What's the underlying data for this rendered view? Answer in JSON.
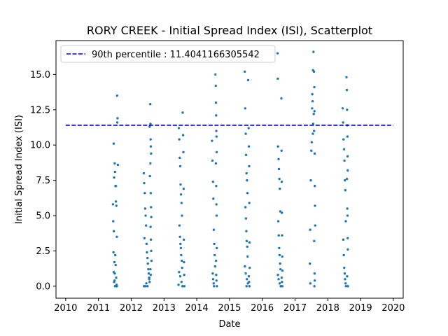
{
  "chart_data": {
    "type": "scatter",
    "title": "RORY CREEK - Initial Spread Index (ISI), Scatterplot",
    "xlabel": "Date",
    "ylabel": "Initial Spread Index (ISI)",
    "xlim": [
      "2009-09-15",
      "2020-04-20"
    ],
    "ylim": [
      -0.85,
      17.4
    ],
    "xticks": [
      "2010",
      "2011",
      "2012",
      "2013",
      "2014",
      "2015",
      "2016",
      "2017",
      "2018",
      "2019",
      "2020"
    ],
    "yticks": [
      "0.0",
      "2.5",
      "5.0",
      "7.5",
      "10.0",
      "12.5",
      "15.0"
    ],
    "grid": false,
    "legend_position": "top-left",
    "point_color": "#1f77b4",
    "percentile_line": {
      "label": "90th percentile : 11.4041166305542",
      "value": 11.4041166305542,
      "color": "#0000cc",
      "style": "dashed",
      "x_range": [
        "2010-01-01",
        "2020-01-01"
      ]
    },
    "series": [
      {
        "points": [
          [
            "2011-06-20",
            10.1
          ],
          [
            "2011-06-25",
            7.7
          ],
          [
            "2011-07-01",
            8.7
          ],
          [
            "2011-07-05",
            8.1
          ],
          [
            "2011-07-10",
            7.1
          ],
          [
            "2011-07-15",
            6.0
          ],
          [
            "2011-07-20",
            5.7
          ],
          [
            "2011-06-15",
            4.6
          ],
          [
            "2011-06-22",
            3.9
          ],
          [
            "2011-07-25",
            3.5
          ],
          [
            "2011-06-18",
            2.4
          ],
          [
            "2011-07-08",
            2.2
          ],
          [
            "2011-06-28",
            1.7
          ],
          [
            "2011-07-12",
            1.5
          ],
          [
            "2011-06-20",
            1.0
          ],
          [
            "2011-07-02",
            0.9
          ],
          [
            "2011-07-18",
            0.6
          ],
          [
            "2011-06-25",
            0.3
          ],
          [
            "2011-07-22",
            0.1
          ],
          [
            "2011-07-05",
            0.0
          ],
          [
            "2011-07-28",
            13.5
          ],
          [
            "2011-08-02",
            11.9
          ],
          [
            "2011-07-30",
            11.6
          ],
          [
            "2011-08-05",
            8.6
          ],
          [
            "2011-07-15",
            7.1
          ],
          [
            "2011-06-12",
            5.8
          ],
          [
            "2011-06-30",
            0.4
          ],
          [
            "2011-07-26",
            0.0
          ],
          [
            "2012-05-20",
            8.0
          ],
          [
            "2012-05-25",
            7.3
          ],
          [
            "2012-06-01",
            6.6
          ],
          [
            "2012-06-05",
            5.5
          ],
          [
            "2012-06-10",
            5.0
          ],
          [
            "2012-06-15",
            4.3
          ],
          [
            "2012-05-28",
            3.4
          ],
          [
            "2012-06-20",
            3.0
          ],
          [
            "2012-06-25",
            2.4
          ],
          [
            "2012-07-01",
            2.0
          ],
          [
            "2012-07-05",
            1.6
          ],
          [
            "2012-07-10",
            1.2
          ],
          [
            "2012-07-15",
            0.9
          ],
          [
            "2012-07-20",
            0.6
          ],
          [
            "2012-07-25",
            0.3
          ],
          [
            "2012-05-22",
            0.0
          ],
          [
            "2012-06-08",
            0.0
          ],
          [
            "2012-08-01",
            12.9
          ],
          [
            "2012-08-03",
            11.5
          ],
          [
            "2012-07-25",
            11.3
          ],
          [
            "2012-08-05",
            10.4
          ],
          [
            "2012-08-07",
            9.9
          ],
          [
            "2012-08-10",
            9.4
          ],
          [
            "2012-08-02",
            8.7
          ],
          [
            "2012-07-28",
            7.8
          ],
          [
            "2012-08-06",
            6.6
          ],
          [
            "2012-08-09",
            5.6
          ],
          [
            "2012-08-12",
            4.9
          ],
          [
            "2012-08-04",
            4.2
          ],
          [
            "2012-08-08",
            3.3
          ],
          [
            "2012-08-11",
            2.5
          ],
          [
            "2012-08-14",
            1.8
          ],
          [
            "2012-08-03",
            1.2
          ],
          [
            "2012-08-06",
            0.8
          ],
          [
            "2012-07-20",
            0.5
          ],
          [
            "2012-06-18",
            0.2
          ],
          [
            "2012-07-01",
            0.0
          ],
          [
            "2013-06-15",
            11.2
          ],
          [
            "2013-06-20",
            10.4
          ],
          [
            "2013-06-25",
            9.1
          ],
          [
            "2013-07-01",
            8.5
          ],
          [
            "2013-07-05",
            7.2
          ],
          [
            "2013-07-10",
            6.5
          ],
          [
            "2013-07-15",
            5.9
          ],
          [
            "2013-07-20",
            5.0
          ],
          [
            "2013-06-22",
            4.3
          ],
          [
            "2013-06-28",
            3.5
          ],
          [
            "2013-07-03",
            3.0
          ],
          [
            "2013-07-08",
            2.7
          ],
          [
            "2013-07-12",
            2.2
          ],
          [
            "2013-07-18",
            1.8
          ],
          [
            "2013-07-22",
            1.3
          ],
          [
            "2013-06-18",
            1.0
          ],
          [
            "2013-07-01",
            0.7
          ],
          [
            "2013-07-15",
            0.3
          ],
          [
            "2013-07-25",
            0.0
          ],
          [
            "2013-06-12",
            0.1
          ],
          [
            "2013-07-28",
            12.3
          ],
          [
            "2013-08-02",
            10.7
          ],
          [
            "2013-08-05",
            9.5
          ],
          [
            "2013-08-08",
            6.9
          ],
          [
            "2013-08-10",
            3.3
          ],
          [
            "2013-08-12",
            1.7
          ],
          [
            "2013-08-14",
            0.8
          ],
          [
            "2013-08-16",
            0.0
          ],
          [
            "2014-06-20",
            10.3
          ],
          [
            "2014-06-25",
            8.9
          ],
          [
            "2014-07-01",
            7.4
          ],
          [
            "2014-07-05",
            6.2
          ],
          [
            "2014-07-10",
            4.0
          ],
          [
            "2014-07-15",
            3.0
          ],
          [
            "2014-07-20",
            2.2
          ],
          [
            "2014-07-25",
            1.4
          ],
          [
            "2014-06-28",
            0.9
          ],
          [
            "2014-07-02",
            0.5
          ],
          [
            "2014-07-08",
            0.2
          ],
          [
            "2014-07-12",
            0.0
          ],
          [
            "2014-07-28",
            15.0
          ],
          [
            "2014-08-01",
            14.2
          ],
          [
            "2014-08-03",
            13.0
          ],
          [
            "2014-08-05",
            12.1
          ],
          [
            "2014-08-07",
            11.0
          ],
          [
            "2014-08-09",
            10.6
          ],
          [
            "2014-08-11",
            9.5
          ],
          [
            "2014-08-02",
            8.7
          ],
          [
            "2014-08-06",
            7.1
          ],
          [
            "2014-08-08",
            5.8
          ],
          [
            "2014-08-10",
            5.0
          ],
          [
            "2014-08-12",
            2.7
          ],
          [
            "2014-08-04",
            1.8
          ],
          [
            "2014-08-06",
            0.8
          ],
          [
            "2014-08-09",
            0.4
          ],
          [
            "2014-08-13",
            0.0
          ],
          [
            "2015-06-20",
            15.2
          ],
          [
            "2015-06-25",
            12.6
          ],
          [
            "2015-07-01",
            10.8
          ],
          [
            "2015-07-05",
            9.3
          ],
          [
            "2015-07-10",
            8.0
          ],
          [
            "2015-07-15",
            7.5
          ],
          [
            "2015-07-20",
            6.6
          ],
          [
            "2015-06-28",
            5.6
          ],
          [
            "2015-07-03",
            4.8
          ],
          [
            "2015-07-08",
            3.9
          ],
          [
            "2015-07-12",
            3.2
          ],
          [
            "2015-07-18",
            2.8
          ],
          [
            "2015-07-22",
            2.1
          ],
          [
            "2015-06-22",
            1.4
          ],
          [
            "2015-07-01",
            0.9
          ],
          [
            "2015-07-14",
            0.5
          ],
          [
            "2015-07-25",
            0.2
          ],
          [
            "2015-07-10",
            0.0
          ],
          [
            "2015-07-28",
            14.6
          ],
          [
            "2015-08-02",
            11.2
          ],
          [
            "2015-08-05",
            9.9
          ],
          [
            "2015-08-08",
            8.5
          ],
          [
            "2015-08-10",
            5.9
          ],
          [
            "2015-08-12",
            3.1
          ],
          [
            "2015-08-14",
            1.3
          ],
          [
            "2015-08-04",
            0.7
          ],
          [
            "2015-08-07",
            0.3
          ],
          [
            "2015-08-11",
            0.0
          ],
          [
            "2016-06-20",
            16.5
          ],
          [
            "2016-06-22",
            14.7
          ],
          [
            "2016-06-25",
            9.9
          ],
          [
            "2016-07-01",
            9.0
          ],
          [
            "2016-07-05",
            8.3
          ],
          [
            "2016-07-10",
            7.6
          ],
          [
            "2016-07-15",
            6.9
          ],
          [
            "2016-07-20",
            5.3
          ],
          [
            "2016-06-28",
            4.6
          ],
          [
            "2016-07-03",
            3.6
          ],
          [
            "2016-07-08",
            2.7
          ],
          [
            "2016-07-12",
            2.2
          ],
          [
            "2016-07-18",
            1.6
          ],
          [
            "2016-07-22",
            1.2
          ],
          [
            "2016-06-24",
            0.8
          ],
          [
            "2016-07-01",
            0.5
          ],
          [
            "2016-07-14",
            0.2
          ],
          [
            "2016-07-25",
            0.0
          ],
          [
            "2016-08-01",
            13.3
          ],
          [
            "2016-08-03",
            9.6
          ],
          [
            "2016-08-05",
            7.4
          ],
          [
            "2016-08-07",
            5.2
          ],
          [
            "2016-08-09",
            3.6
          ],
          [
            "2016-08-11",
            2.1
          ],
          [
            "2016-08-13",
            1.1
          ],
          [
            "2016-08-04",
            0.6
          ],
          [
            "2016-08-08",
            0.3
          ],
          [
            "2016-08-12",
            0.0
          ],
          [
            "2017-06-15",
            1.6
          ],
          [
            "2017-06-20",
            0.2
          ],
          [
            "2017-06-18",
            4.0
          ],
          [
            "2017-06-25",
            7.5
          ],
          [
            "2017-07-01",
            9.6
          ],
          [
            "2017-07-05",
            10.2
          ],
          [
            "2017-07-10",
            12.6
          ],
          [
            "2017-07-15",
            13.1
          ],
          [
            "2017-07-20",
            15.3
          ],
          [
            "2017-07-25",
            16.6
          ],
          [
            "2017-07-28",
            12.2
          ],
          [
            "2017-08-01",
            11.0
          ],
          [
            "2017-08-03",
            14.1
          ],
          [
            "2017-08-05",
            12.4
          ],
          [
            "2017-08-07",
            9.4
          ],
          [
            "2017-08-09",
            7.1
          ],
          [
            "2017-08-11",
            5.7
          ],
          [
            "2017-08-13",
            4.3
          ],
          [
            "2017-08-02",
            3.2
          ],
          [
            "2017-08-06",
            0.9
          ],
          [
            "2017-08-08",
            0.4
          ],
          [
            "2017-07-18",
            10.8
          ],
          [
            "2017-07-22",
            11.5
          ],
          [
            "2017-07-12",
            13.6
          ],
          [
            "2017-07-30",
            15.2
          ],
          [
            "2017-08-04",
            0.0
          ],
          [
            "2018-06-15",
            12.6
          ],
          [
            "2018-06-20",
            11.6
          ],
          [
            "2018-06-25",
            10.4
          ],
          [
            "2018-07-01",
            9.7
          ],
          [
            "2018-07-05",
            8.9
          ],
          [
            "2018-07-10",
            7.5
          ],
          [
            "2018-07-15",
            6.8
          ],
          [
            "2018-07-20",
            4.6
          ],
          [
            "2018-06-22",
            3.3
          ],
          [
            "2018-06-28",
            2.2
          ],
          [
            "2018-07-03",
            1.3
          ],
          [
            "2018-07-08",
            0.9
          ],
          [
            "2018-07-12",
            0.5
          ],
          [
            "2018-07-18",
            0.2
          ],
          [
            "2018-07-22",
            0.0
          ],
          [
            "2018-07-28",
            14.8
          ],
          [
            "2018-08-01",
            13.9
          ],
          [
            "2018-08-03",
            12.5
          ],
          [
            "2018-08-05",
            11.4
          ],
          [
            "2018-08-07",
            10.6
          ],
          [
            "2018-08-09",
            9.2
          ],
          [
            "2018-08-11",
            8.2
          ],
          [
            "2018-08-02",
            7.6
          ],
          [
            "2018-08-06",
            5.5
          ],
          [
            "2018-08-08",
            5.0
          ],
          [
            "2018-08-10",
            3.4
          ],
          [
            "2018-08-12",
            2.6
          ],
          [
            "2018-08-04",
            0.7
          ],
          [
            "2018-08-13",
            0.0
          ]
        ]
      }
    ]
  }
}
